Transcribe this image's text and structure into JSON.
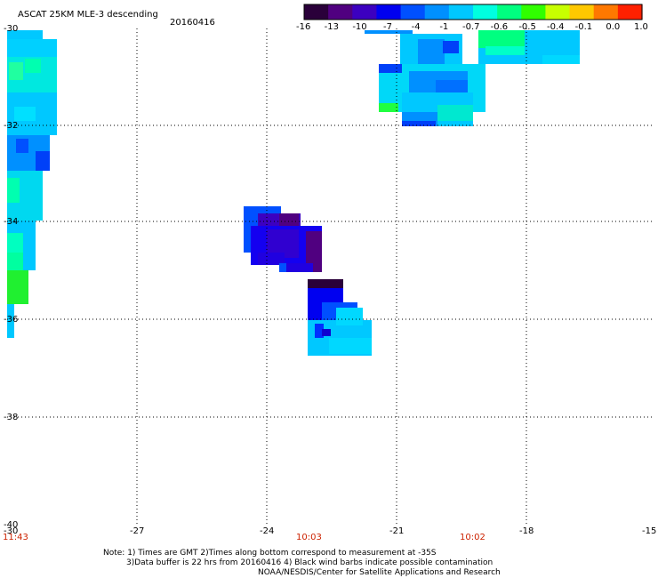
{
  "header": {
    "title": "ASCAT 25KM MLE-3 descending",
    "date": "20160416"
  },
  "colorbar": {
    "tick_labels": [
      "-16",
      "-13",
      "-10",
      "-7",
      "-4",
      "-1",
      "-0.7",
      "-0.6",
      "-0.5",
      "-0.4",
      "-0.1",
      "0.0",
      "1.0"
    ],
    "colors": [
      "#2a003a",
      "#500080",
      "#3c00c0",
      "#0000f0",
      "#0050ff",
      "#0090ff",
      "#00c8ff",
      "#00ffe0",
      "#00ff80",
      "#30ff00",
      "#c8ff00",
      "#ffc800",
      "#ff7800",
      "#ff2000"
    ]
  },
  "map": {
    "lat_labels": [
      "-30",
      "-32",
      "-34",
      "-36",
      "-38",
      "-40"
    ],
    "lon_labels": [
      "-30",
      "-27",
      "-24",
      "-21",
      "-18",
      "-15"
    ],
    "time_labels": [
      "11:43",
      "10:03",
      "10:02"
    ],
    "time_color": "#cc2200",
    "grid": "dotted"
  },
  "footer": {
    "line1": "Note: 1) Times are GMT 2)Times along bottom correspond to measurement at -35S",
    "line2": "3)Data buffer is 22 hrs from 20160416 4) Black wind barbs indicate possible contamination",
    "line3": "NOAA/NESDIS/Center for Satellite Applications and Research"
  }
}
